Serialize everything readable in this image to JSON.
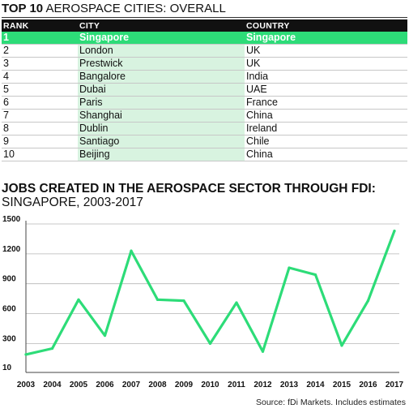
{
  "table": {
    "title_bold": "TOP 10",
    "title_rest": "AEROSPACE CITIES: OVERALL",
    "headers": [
      "RANK",
      "CITY",
      "COUNTRY"
    ],
    "rows": [
      {
        "rank": "1",
        "city": "Singapore",
        "country": "Singapore"
      },
      {
        "rank": "2",
        "city": "London",
        "country": "UK"
      },
      {
        "rank": "3",
        "city": "Prestwick",
        "country": "UK"
      },
      {
        "rank": "4",
        "city": "Bangalore",
        "country": "India"
      },
      {
        "rank": "5",
        "city": "Dubai",
        "country": "UAE"
      },
      {
        "rank": "6",
        "city": "Paris",
        "country": "France"
      },
      {
        "rank": "7",
        "city": "Shanghai",
        "country": "China"
      },
      {
        "rank": "8",
        "city": "Dublin",
        "country": "Ireland"
      },
      {
        "rank": "9",
        "city": "Santiago",
        "country": "Chile"
      },
      {
        "rank": "10",
        "city": "Beijing",
        "country": "China"
      }
    ]
  },
  "chart_data": {
    "type": "line",
    "title": "JOBS CREATED IN THE AEROSPACE SECTOR THROUGH FDI:",
    "subtitle": "SINGAPORE, 2003-2017",
    "x": [
      "2003",
      "2004",
      "2005",
      "2006",
      "2007",
      "2008",
      "2009",
      "2010",
      "2011",
      "2012",
      "2013",
      "2014",
      "2015",
      "2016",
      "2017"
    ],
    "series": [
      {
        "values": [
          190,
          250,
          740,
          380,
          1230,
          740,
          730,
          300,
          710,
          220,
          1060,
          990,
          280,
          730,
          1430
        ]
      }
    ],
    "yticks": [
      "10",
      "300",
      "600",
      "900",
      "1200",
      "1500"
    ],
    "ylim": [
      10,
      1500
    ],
    "grid": true,
    "color": "#2ddc78"
  },
  "source": "Source: fDi Markets. Includes estimates"
}
